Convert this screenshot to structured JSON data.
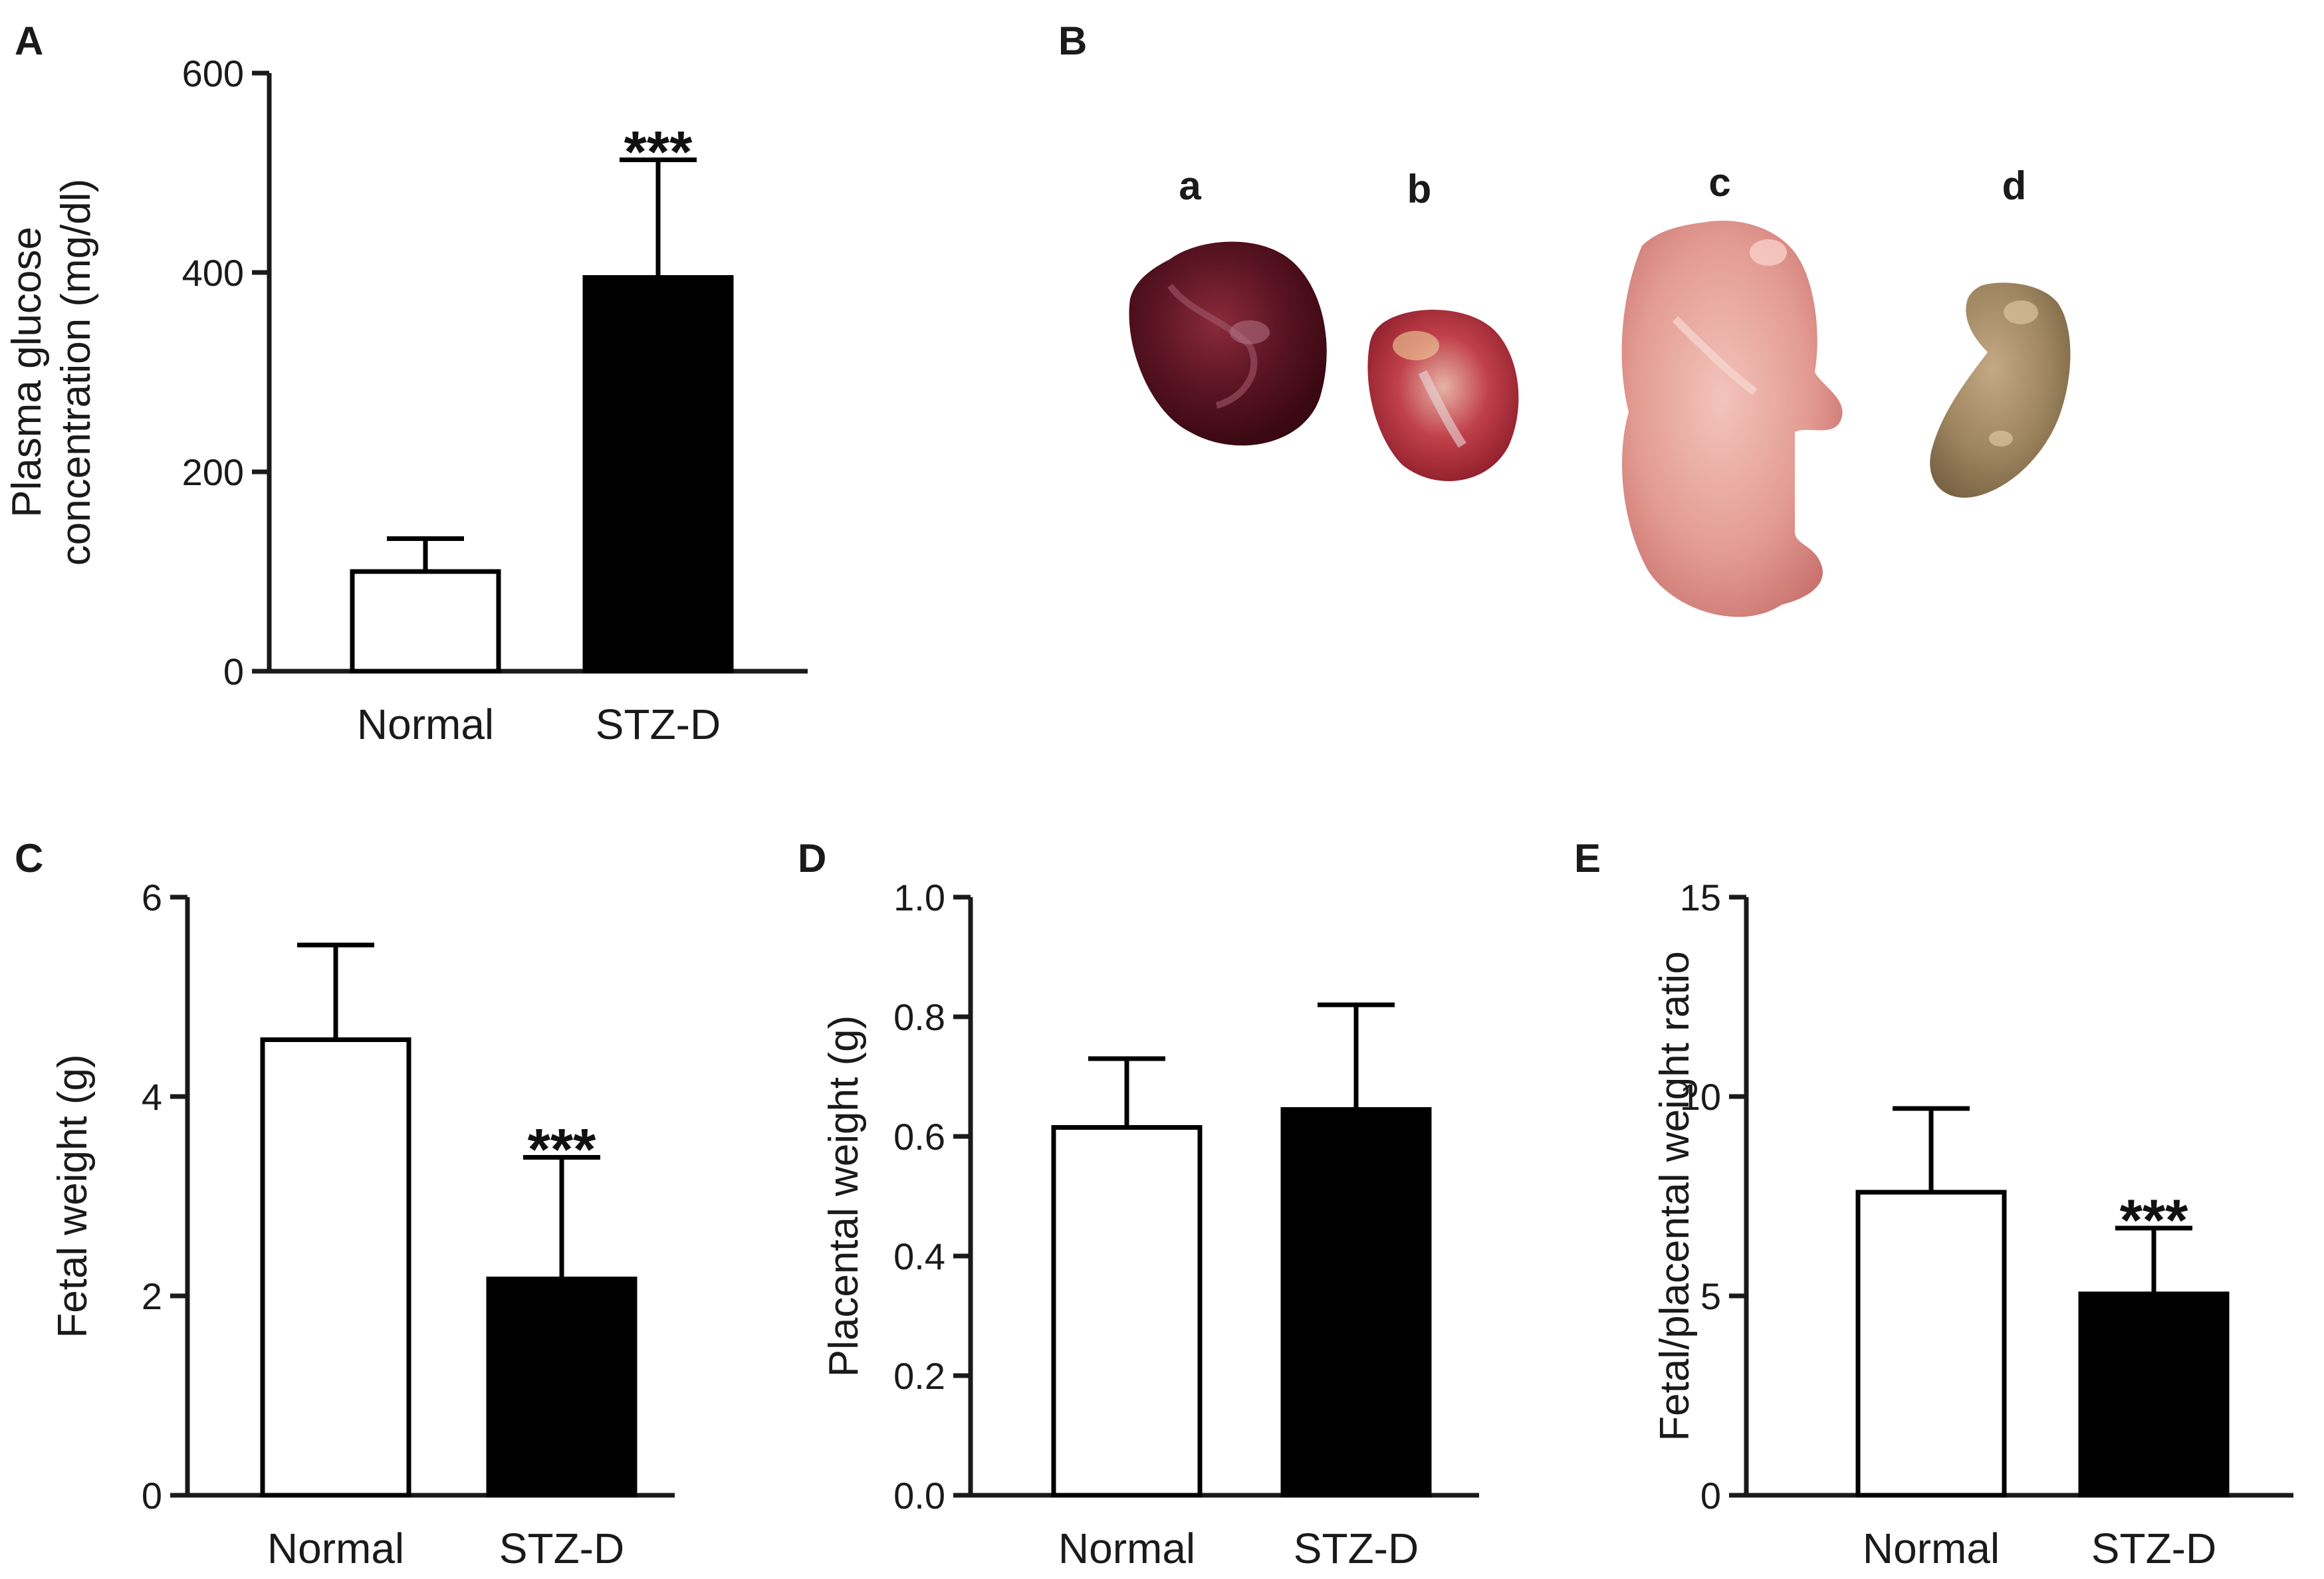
{
  "panels": {
    "A": {
      "label": "A"
    },
    "B": {
      "label": "B",
      "sub_labels": [
        "a",
        "b",
        "c",
        "d"
      ]
    },
    "C": {
      "label": "C"
    },
    "D": {
      "label": "D"
    },
    "E": {
      "label": "E"
    }
  },
  "colors": {
    "normal_fill": "#ffffff",
    "stz_fill": "#000000",
    "axis": "#1a1a1a"
  },
  "chart_data": [
    {
      "id": "A",
      "type": "bar",
      "categories": [
        "Normal",
        "STZ-D"
      ],
      "values": [
        100,
        395
      ],
      "errors": [
        33,
        118
      ],
      "significance": [
        "",
        "***"
      ],
      "ylabel_lines": [
        "Plasma glucose",
        "concentration (mg/dl)"
      ],
      "ylim": [
        0,
        600
      ],
      "yticks": [
        0,
        200,
        400,
        600
      ],
      "ytick_labels": [
        "0",
        "200",
        "400",
        "600"
      ]
    },
    {
      "id": "C",
      "type": "bar",
      "categories": [
        "Normal",
        "STZ-D"
      ],
      "values": [
        4.57,
        2.17
      ],
      "errors": [
        0.95,
        1.22
      ],
      "significance": [
        "",
        "***"
      ],
      "ylabel_lines": [
        "Fetal weight (g)"
      ],
      "ylim": [
        0,
        6
      ],
      "yticks": [
        0,
        2,
        4,
        6
      ],
      "ytick_labels": [
        "0",
        "2",
        "4",
        "6"
      ]
    },
    {
      "id": "D",
      "type": "bar",
      "categories": [
        "Normal",
        "STZ-D"
      ],
      "values": [
        0.615,
        0.645
      ],
      "errors": [
        0.115,
        0.175
      ],
      "significance": [
        "",
        ""
      ],
      "ylabel_lines": [
        "Placental weight (g)"
      ],
      "ylim": [
        0,
        1.0
      ],
      "yticks": [
        0,
        0.2,
        0.4,
        0.6,
        0.8,
        1.0
      ],
      "ytick_labels": [
        "0.0",
        "0.2",
        "0.4",
        "0.6",
        "0.8",
        "1.0"
      ]
    },
    {
      "id": "E",
      "type": "bar",
      "categories": [
        "Normal",
        "STZ-D"
      ],
      "values": [
        7.6,
        5.05
      ],
      "errors": [
        2.1,
        1.65
      ],
      "significance": [
        "",
        "***"
      ],
      "ylabel_lines": [
        "Fetal/placental weight ratio"
      ],
      "ylim": [
        0,
        15
      ],
      "yticks": [
        0,
        5,
        10,
        15
      ],
      "ytick_labels": [
        "0",
        "5",
        "10",
        "15"
      ]
    }
  ]
}
